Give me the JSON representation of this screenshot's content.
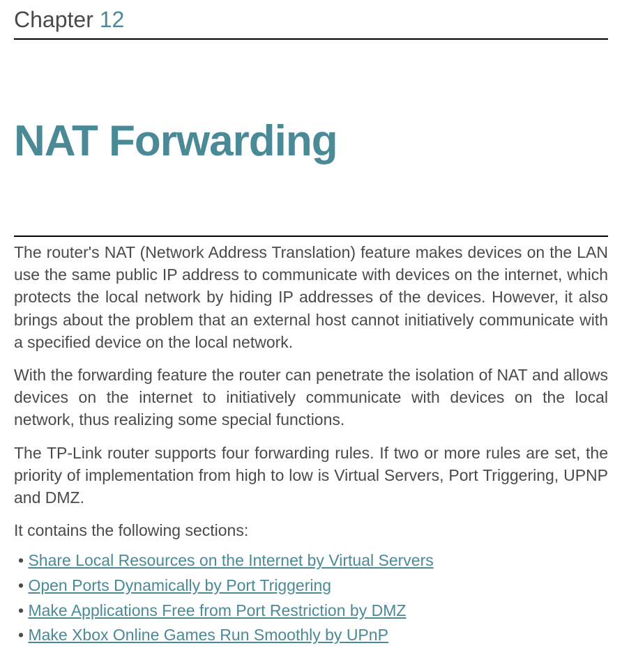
{
  "header": {
    "label": "Chapter",
    "number": "12"
  },
  "title": "NAT Forwarding",
  "paragraphs": {
    "p1": "The router's NAT (Network Address Translation) feature makes devices on the LAN use the same public IP address to communicate with devices on the internet, which protects the local network by hiding IP addresses of the devices. However, it also brings about the problem that an external host cannot initiatively communicate with a specified device on the local network.",
    "p2": "With the forwarding feature the router can penetrate the isolation of NAT and allows devices on the internet to initiatively communicate with devices on the local network, thus realizing some special functions.",
    "p3": "The TP-Link router supports four forwarding rules. If two or more rules are set, the priority of implementation from high to low is Virtual Servers, Port Triggering, UPNP and DMZ.",
    "p4": "It contains the following sections:"
  },
  "sections": {
    "items": [
      "Share Local Resources on the Internet by Virtual Servers",
      "Open Ports Dynamically by Port Triggering",
      "Make Applications Free from Port Restriction by DMZ",
      "Make Xbox Online Games Run Smoothly by UPnP"
    ]
  },
  "colors": {
    "accent": "#4a8a96",
    "body_text": "#4a4a4a",
    "border": "#000000",
    "background": "#ffffff"
  },
  "typography": {
    "chapter_fontsize": 32,
    "title_fontsize": 62,
    "body_fontsize": 23,
    "title_weight": 700
  }
}
